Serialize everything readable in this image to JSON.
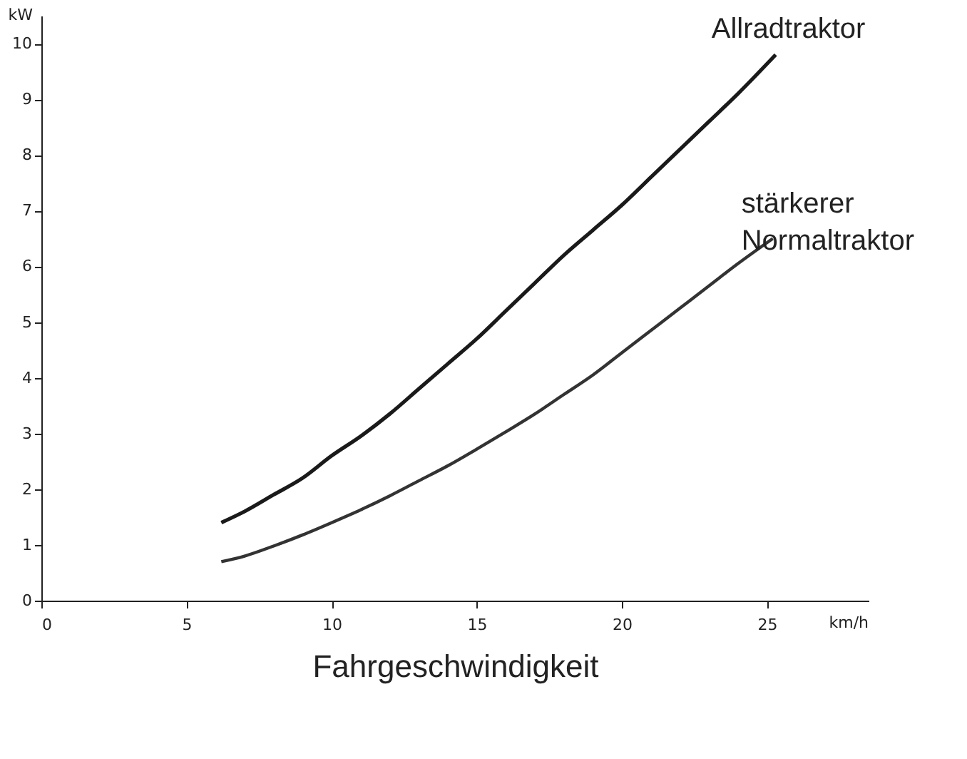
{
  "chart_data": {
    "type": "line",
    "xlabel": "Fahrgeschwindigkeit",
    "ylabel": "kW",
    "annotations": [
      "km/h"
    ],
    "xlim": [
      0,
      28.5
    ],
    "ylim": [
      0,
      10.5
    ],
    "xticks": [
      0,
      5,
      10,
      15,
      20,
      25
    ],
    "yticks": [
      0,
      1,
      2,
      3,
      4,
      5,
      6,
      7,
      8,
      9,
      10
    ],
    "grid": false,
    "marker": "none",
    "line_style": "solid",
    "series": [
      {
        "name": "Allradtraktor",
        "color": "#1a1a1a",
        "x": [
          6.2,
          7,
          8,
          9,
          10,
          11,
          12,
          13,
          14,
          15,
          16,
          17,
          18,
          19,
          20,
          21,
          22,
          23,
          24,
          25.3
        ],
        "values": [
          1.4,
          1.6,
          1.9,
          2.2,
          2.6,
          2.95,
          3.35,
          3.8,
          4.25,
          4.7,
          5.2,
          5.7,
          6.2,
          6.65,
          7.1,
          7.6,
          8.1,
          8.6,
          9.1,
          9.8
        ]
      },
      {
        "name": "stärkerer Normaltraktor",
        "color": "#333333",
        "x": [
          6.2,
          7,
          8,
          9,
          10,
          11,
          12,
          13,
          14,
          15,
          16,
          17,
          18,
          19,
          20,
          21,
          22,
          23,
          24,
          25.2
        ],
        "values": [
          0.7,
          0.8,
          0.98,
          1.18,
          1.4,
          1.63,
          1.88,
          2.15,
          2.42,
          2.72,
          3.03,
          3.35,
          3.7,
          4.05,
          4.45,
          4.85,
          5.25,
          5.65,
          6.05,
          6.5
        ]
      }
    ]
  }
}
